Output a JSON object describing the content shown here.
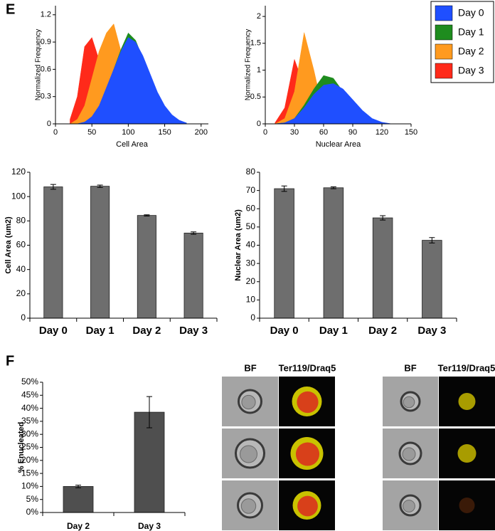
{
  "panel_labels": [
    "E",
    "F"
  ],
  "image_panel": {
    "headers": [
      "BF",
      "Ter119/Draq5",
      "BF",
      "Ter119/Draq5"
    ]
  },
  "chart_data": [
    {
      "type": "area",
      "xlabel": "Cell Area",
      "ylabel": "Normalized Frequency",
      "x": [
        20,
        30,
        40,
        50,
        60,
        70,
        80,
        90,
        100,
        110,
        120,
        130,
        140,
        150,
        160,
        170,
        180
      ],
      "series": [
        {
          "name": "Day 0",
          "color": "#1f4fff",
          "values": [
            0,
            0,
            0.02,
            0.08,
            0.2,
            0.4,
            0.6,
            0.8,
            0.95,
            0.9,
            0.75,
            0.55,
            0.35,
            0.2,
            0.1,
            0.04,
            0.01
          ]
        },
        {
          "name": "Day 1",
          "color": "#1e8c1e",
          "values": [
            0,
            0,
            0.02,
            0.07,
            0.18,
            0.38,
            0.6,
            0.82,
            1.0,
            0.92,
            0.72,
            0.5,
            0.32,
            0.18,
            0.09,
            0.03,
            0.01
          ]
        },
        {
          "name": "Day 2",
          "color": "#ff9a1f",
          "values": [
            0,
            0.05,
            0.2,
            0.5,
            0.8,
            1.0,
            1.1,
            0.8,
            0.4,
            0.15,
            0.05,
            0.01,
            0,
            0,
            0,
            0,
            0
          ]
        },
        {
          "name": "Day 3",
          "color": "#ff2a1a",
          "values": [
            0.05,
            0.3,
            0.85,
            0.95,
            0.7,
            0.35,
            0.1,
            0.02,
            0,
            0,
            0,
            0,
            0,
            0,
            0,
            0,
            0
          ]
        }
      ],
      "xlim": [
        0,
        210
      ],
      "xticks": [
        0,
        50,
        100,
        150,
        200
      ],
      "ylim": [
        0,
        1.3
      ],
      "yticks": [
        0,
        0.3,
        0.6,
        0.9,
        1.2
      ],
      "legend": "upper right"
    },
    {
      "type": "area",
      "xlabel": "Nuclear Area",
      "ylabel": "Normalized Frequency",
      "x": [
        10,
        20,
        30,
        40,
        50,
        60,
        70,
        80,
        90,
        100,
        110,
        120,
        130
      ],
      "series": [
        {
          "name": "Day 0",
          "color": "#1f4fff",
          "values": [
            0,
            0.02,
            0.1,
            0.3,
            0.55,
            0.72,
            0.75,
            0.65,
            0.45,
            0.25,
            0.1,
            0.03,
            0
          ]
        },
        {
          "name": "Day 1",
          "color": "#1e8c1e",
          "values": [
            0,
            0.02,
            0.1,
            0.35,
            0.65,
            0.9,
            0.85,
            0.6,
            0.35,
            0.15,
            0.05,
            0.01,
            0
          ]
        },
        {
          "name": "Day 2",
          "color": "#ff9a1f",
          "values": [
            0,
            0.1,
            0.6,
            1.7,
            1.0,
            0.2,
            0.03,
            0,
            0,
            0,
            0,
            0,
            0
          ]
        },
        {
          "name": "Day 3",
          "color": "#ff2a1a",
          "values": [
            0.02,
            0.3,
            1.2,
            0.7,
            0.1,
            0.01,
            0,
            0,
            0,
            0,
            0,
            0,
            0
          ]
        }
      ],
      "xlim": [
        0,
        150
      ],
      "xticks": [
        0,
        30,
        60,
        90,
        120,
        150
      ],
      "ylim": [
        0,
        2.2
      ],
      "yticks": [
        0,
        0.5,
        1,
        1.5,
        2
      ]
    },
    {
      "type": "bar",
      "ylabel": "Cell Area (um2)",
      "categories": [
        "Day 0",
        "Day 1",
        "Day 2",
        "Day 3"
      ],
      "values": [
        108,
        108.5,
        84.5,
        70
      ],
      "errors": [
        2,
        1,
        0.5,
        1
      ],
      "color": "#6e6e6e",
      "ylim": [
        0,
        120
      ],
      "yticks": [
        0,
        20,
        40,
        60,
        80,
        100,
        120
      ]
    },
    {
      "type": "bar",
      "ylabel": "Nuclear Area (um2)",
      "categories": [
        "Day 0",
        "Day 1",
        "Day 2",
        "Day 3"
      ],
      "values": [
        71,
        71.5,
        55,
        42.7
      ],
      "errors": [
        1.5,
        0.5,
        1.2,
        1.5
      ],
      "color": "#6e6e6e",
      "ylim": [
        0,
        80
      ],
      "yticks": [
        0,
        10,
        20,
        30,
        40,
        50,
        60,
        70,
        80
      ]
    },
    {
      "type": "bar",
      "ylabel": "% Enucleated",
      "categories": [
        "Day 2",
        "Day 3"
      ],
      "values": [
        10,
        38.5
      ],
      "errors": [
        0.5,
        6
      ],
      "color": "#4f4f4f",
      "ylim": [
        0,
        50
      ],
      "yticks": [
        {
          "value": 0,
          "label": "0%"
        },
        {
          "value": 5,
          "label": "5%"
        },
        {
          "value": 10,
          "label": "10%"
        },
        {
          "value": 15,
          "label": "15%"
        },
        {
          "value": 20,
          "label": "20%"
        },
        {
          "value": 25,
          "label": "25%"
        },
        {
          "value": 30,
          "label": "30%"
        },
        {
          "value": 35,
          "label": "35%"
        },
        {
          "value": 40,
          "label": "40%"
        },
        {
          "value": 45,
          "label": "45%"
        },
        {
          "value": 50,
          "label": "50%"
        }
      ]
    }
  ]
}
